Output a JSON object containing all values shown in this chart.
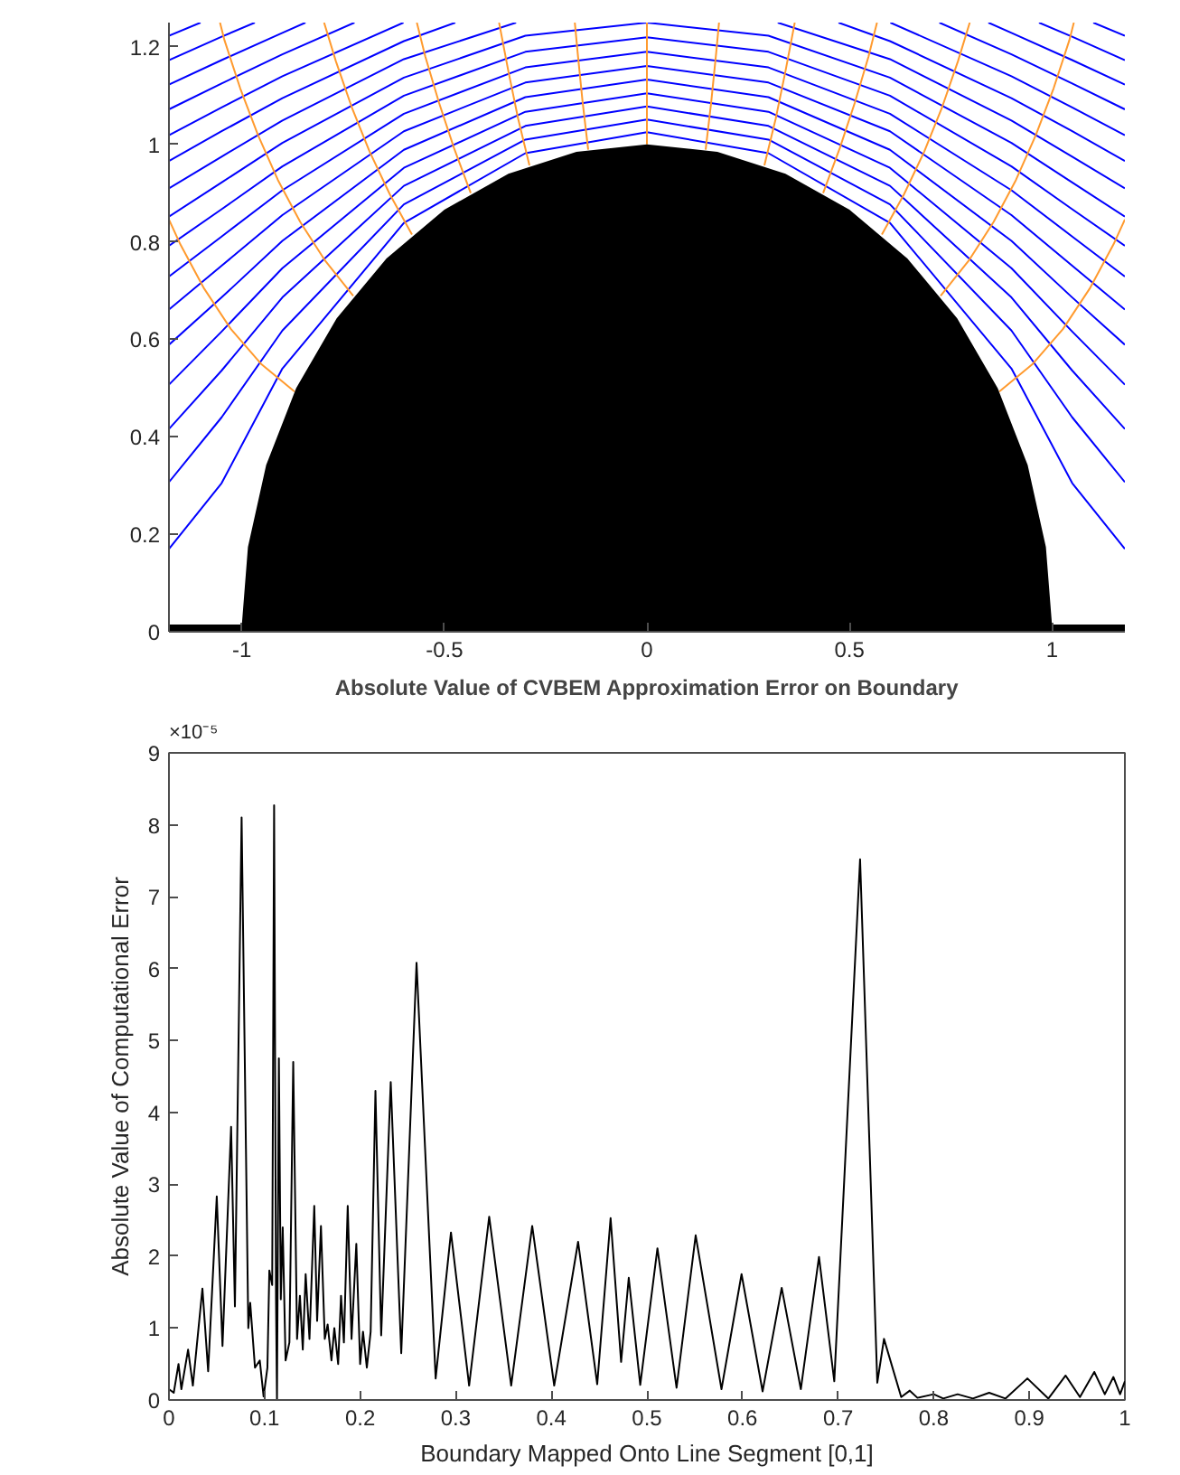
{
  "chart_data": [
    {
      "type": "line",
      "xlim": [
        -1.18,
        1.18
      ],
      "ylim": [
        0,
        1.25
      ],
      "xticks": [
        -1,
        -0.5,
        0,
        0.5,
        1
      ],
      "yticks": [
        0,
        0.2,
        0.4,
        0.6,
        0.8,
        1,
        1.2
      ],
      "series": [
        {
          "color": "#0000ff",
          "x": [
            -1.18,
            -1.05,
            -0.9,
            -0.6,
            -0.3,
            0,
            0.3,
            0.6,
            0.9,
            1.05,
            1.18
          ],
          "values": [
            0.17,
            0.305,
            0.54,
            0.839,
            0.982,
            1.025,
            0.982,
            0.839,
            0.54,
            0.305,
            0.17
          ]
        },
        {
          "color": "#0000ff",
          "x": [
            -1.18,
            -1.05,
            -0.9,
            -0.6,
            -0.3,
            0,
            0.3,
            0.6,
            0.9,
            1.05,
            1.18
          ],
          "values": [
            0.307,
            0.44,
            0.618,
            0.877,
            1.01,
            1.051,
            1.01,
            0.877,
            0.618,
            0.44,
            0.307
          ]
        },
        {
          "color": "#0000ff",
          "x": [
            -1.18,
            -1.05,
            -0.9,
            -0.6,
            -0.3,
            0,
            0.3,
            0.6,
            0.9,
            1.05,
            1.18
          ],
          "values": [
            0.416,
            0.536,
            0.686,
            0.915,
            1.038,
            1.078,
            1.038,
            0.915,
            0.686,
            0.536,
            0.416
          ]
        },
        {
          "color": "#0000ff",
          "x": [
            -1.18,
            -1.05,
            -0.9,
            -0.6,
            -0.3,
            0,
            0.3,
            0.6,
            0.9,
            1.05,
            1.18
          ],
          "values": [
            0.507,
            0.616,
            0.746,
            0.952,
            1.067,
            1.105,
            1.067,
            0.952,
            0.746,
            0.616,
            0.507
          ]
        },
        {
          "color": "#0000ff",
          "x": [
            -1.18,
            -1.05,
            -0.9,
            -0.6,
            -0.3,
            0,
            0.3,
            0.6,
            0.9,
            1.05,
            1.18
          ],
          "values": [
            0.589,
            0.686,
            0.802,
            0.989,
            1.097,
            1.133,
            1.097,
            0.989,
            0.802,
            0.686,
            0.589
          ]
        },
        {
          "color": "#0000ff",
          "x": [
            -1.18,
            -1.05,
            -0.9,
            -0.6,
            -0.3,
            0,
            0.3,
            0.6,
            0.9,
            1.05,
            1.18
          ],
          "values": [
            0.661,
            0.751,
            0.855,
            1.027,
            1.127,
            1.161,
            1.127,
            1.027,
            0.855,
            0.751,
            0.661
          ]
        },
        {
          "color": "#0000ff",
          "x": [
            -1.18,
            -1.05,
            -0.9,
            -0.6,
            -0.3,
            0,
            0.3,
            0.6,
            0.9,
            1.05,
            1.18
          ],
          "values": [
            0.729,
            0.811,
            0.906,
            1.063,
            1.158,
            1.19,
            1.158,
            1.063,
            0.906,
            0.811,
            0.729
          ]
        },
        {
          "color": "#0000ff",
          "x": [
            -1.18,
            -1.05,
            -0.9,
            -0.6,
            -0.3,
            0,
            0.3,
            0.6,
            0.9,
            1.05,
            1.18
          ],
          "values": [
            0.792,
            0.867,
            0.955,
            1.1,
            1.19,
            1.22,
            1.19,
            1.1,
            0.955,
            0.867,
            0.792
          ]
        },
        {
          "color": "#0000ff",
          "x": [
            -1.18,
            -1.05,
            -0.9,
            -0.6,
            -0.3,
            0,
            0.3,
            0.6,
            0.9,
            1.05,
            1.18
          ],
          "values": [
            0.852,
            0.922,
            1.003,
            1.137,
            1.223,
            1.25,
            1.223,
            1.137,
            1.003,
            0.922,
            0.852
          ]
        },
        {
          "color": "#0000ff",
          "x": [
            -1.18,
            -1.05,
            -0.9,
            -0.6,
            -0.323
          ],
          "values": [
            0.91,
            0.975,
            1.049,
            1.175,
            1.25
          ]
        },
        {
          "color": "#0000ff",
          "x": [
            0.323,
            0.6,
            0.9,
            1.05,
            1.18
          ],
          "values": [
            1.25,
            1.175,
            1.049,
            0.975,
            0.91
          ]
        },
        {
          "color": "#0000ff",
          "x": [
            -1.18,
            -1.05,
            -0.9,
            -0.6,
            -0.473
          ],
          "values": [
            0.966,
            1.027,
            1.095,
            1.212,
            1.25
          ]
        },
        {
          "color": "#0000ff",
          "x": [
            0.473,
            0.6,
            0.9,
            1.05,
            1.18
          ],
          "values": [
            1.25,
            1.212,
            1.095,
            1.027,
            0.966
          ]
        },
        {
          "color": "#0000ff",
          "x": [
            -1.18,
            -1.05,
            -0.9,
            -0.601
          ],
          "values": [
            1.019,
            1.076,
            1.14,
            1.25
          ]
        },
        {
          "color": "#0000ff",
          "x": [
            0.601,
            0.9,
            1.05,
            1.18
          ],
          "values": [
            1.25,
            1.14,
            1.076,
            1.019
          ]
        },
        {
          "color": "#0000ff",
          "x": [
            -1.18,
            -1.05,
            -0.9,
            -0.722
          ],
          "values": [
            1.072,
            1.125,
            1.185,
            1.25
          ]
        },
        {
          "color": "#0000ff",
          "x": [
            0.722,
            0.9,
            1.05,
            1.18
          ],
          "values": [
            1.25,
            1.185,
            1.125,
            1.072
          ]
        },
        {
          "color": "#0000ff",
          "x": [
            -1.18,
            -1.05,
            -0.9,
            -0.843
          ],
          "values": [
            1.123,
            1.173,
            1.229,
            1.25
          ]
        },
        {
          "color": "#0000ff",
          "x": [
            0.843,
            0.9,
            1.05,
            1.18
          ],
          "values": [
            1.25,
            1.229,
            1.173,
            1.123
          ]
        },
        {
          "color": "#0000ff",
          "x": [
            -1.18,
            -1.05,
            -0.968
          ],
          "values": [
            1.173,
            1.221,
            1.25
          ]
        },
        {
          "color": "#0000ff",
          "x": [
            0.968,
            1.05,
            1.18
          ],
          "values": [
            1.25,
            1.221,
            1.173
          ]
        },
        {
          "color": "#0000ff",
          "x": [
            -1.18,
            -1.102
          ],
          "values": [
            1.223,
            1.25
          ]
        },
        {
          "color": "#0000ff",
          "x": [
            1.102,
            1.18
          ],
          "values": [
            1.25,
            1.223
          ]
        },
        {
          "color": "#ff9a2e",
          "x": [
            0,
            0
          ],
          "values": [
            1,
            1.25
          ]
        },
        {
          "color": "#ff9a2e",
          "x": [
            -0.145,
            -0.159,
            -0.171,
            -0.178
          ],
          "values": [
            0.989,
            1.089,
            1.188,
            1.25
          ]
        },
        {
          "color": "#ff9a2e",
          "x": [
            0.145,
            0.159,
            0.171,
            0.178
          ],
          "values": [
            0.989,
            1.089,
            1.188,
            1.25
          ]
        },
        {
          "color": "#ff9a2e",
          "x": [
            -0.29,
            -0.318,
            -0.342,
            -0.365
          ],
          "values": [
            0.957,
            1.053,
            1.15,
            1.25
          ]
        },
        {
          "color": "#ff9a2e",
          "x": [
            0.29,
            0.318,
            0.342,
            0.365
          ],
          "values": [
            0.957,
            1.053,
            1.15,
            1.25
          ]
        },
        {
          "color": "#ff9a2e",
          "x": [
            -0.435,
            -0.476,
            -0.513,
            -0.547,
            -0.568
          ],
          "values": [
            0.9,
            0.992,
            1.085,
            1.18,
            1.25
          ]
        },
        {
          "color": "#ff9a2e",
          "x": [
            0.435,
            0.476,
            0.513,
            0.547,
            0.568
          ],
          "values": [
            0.9,
            0.992,
            1.085,
            1.18,
            1.25
          ]
        },
        {
          "color": "#ff9a2e",
          "x": [
            -0.58,
            -0.635,
            -0.685,
            -0.729,
            -0.768,
            -0.797
          ],
          "values": [
            0.815,
            0.898,
            0.986,
            1.077,
            1.171,
            1.25
          ]
        },
        {
          "color": "#ff9a2e",
          "x": [
            0.58,
            0.635,
            0.685,
            0.729,
            0.768,
            0.797
          ],
          "values": [
            0.815,
            0.898,
            0.986,
            1.077,
            1.171,
            1.25
          ]
        },
        {
          "color": "#ff9a2e",
          "x": [
            -0.725,
            -0.794,
            -0.856,
            -0.911,
            -0.96,
            -1.004,
            -1.043,
            -1.054
          ],
          "values": [
            0.689,
            0.761,
            0.841,
            0.927,
            1.019,
            1.115,
            1.214,
            1.25
          ]
        },
        {
          "color": "#ff9a2e",
          "x": [
            0.725,
            0.794,
            0.856,
            0.911,
            0.96,
            1.004,
            1.043,
            1.054
          ],
          "values": [
            0.689,
            0.761,
            0.841,
            0.927,
            1.019,
            1.115,
            1.214,
            1.25
          ]
        },
        {
          "color": "#ff9a2e",
          "x": [
            -0.87,
            -0.953,
            -1.027,
            -1.093,
            -1.152,
            -1.18
          ],
          "values": [
            0.493,
            0.55,
            0.621,
            0.704,
            0.795,
            0.846
          ]
        },
        {
          "color": "#ff9a2e",
          "x": [
            0.87,
            0.953,
            1.027,
            1.093,
            1.152,
            1.18
          ],
          "values": [
            0.493,
            0.55,
            0.621,
            0.704,
            0.795,
            0.846
          ]
        },
        {
          "type": "area",
          "color": "#000000",
          "x": [
            -1.18,
            -1,
            -0.985,
            -0.94,
            -0.866,
            -0.766,
            -0.643,
            -0.5,
            -0.342,
            -0.174,
            0,
            0.174,
            0.342,
            0.5,
            0.643,
            0.766,
            0.866,
            0.94,
            0.985,
            1,
            1.18
          ],
          "values": [
            0.015,
            0.015,
            0.174,
            0.342,
            0.5,
            0.643,
            0.766,
            0.866,
            0.94,
            0.985,
            1,
            0.985,
            0.94,
            0.866,
            0.766,
            0.643,
            0.5,
            0.342,
            0.174,
            0.015,
            0.015
          ]
        }
      ]
    },
    {
      "type": "line",
      "title": "Absolute Value of CVBEM Approximation Error on Boundary",
      "xlabel": "Boundary Mapped Onto Line Segment [0,1]",
      "ylabel": "Absolute Value of Computational Error",
      "annotations": [
        "×10⁻⁵"
      ],
      "xlim": [
        0,
        1
      ],
      "ylim": [
        0,
        9
      ],
      "xticks": [
        0,
        0.1,
        0.2,
        0.3,
        0.4,
        0.5,
        0.6,
        0.7,
        0.8,
        0.9,
        1
      ],
      "yticks": [
        0,
        1,
        2,
        3,
        4,
        5,
        6,
        7,
        8,
        9
      ],
      "series": [
        {
          "color": "#000000",
          "x": [
            0,
            0.005,
            0.01,
            0.013,
            0.02,
            0.025,
            0.035,
            0.041,
            0.05,
            0.056,
            0.065,
            0.069,
            0.076,
            0.083,
            0.085,
            0.09,
            0.095,
            0.099,
            0.103,
            0.105,
            0.108,
            0.11,
            0.112,
            0.113,
            0.115,
            0.117,
            0.119,
            0.122,
            0.126,
            0.13,
            0.134,
            0.137,
            0.14,
            0.143,
            0.147,
            0.152,
            0.155,
            0.159,
            0.163,
            0.166,
            0.17,
            0.173,
            0.177,
            0.18,
            0.183,
            0.187,
            0.191,
            0.196,
            0.2,
            0.203,
            0.207,
            0.211,
            0.216,
            0.222,
            0.232,
            0.243,
            0.259,
            0.279,
            0.295,
            0.314,
            0.335,
            0.358,
            0.38,
            0.403,
            0.428,
            0.448,
            0.462,
            0.473,
            0.481,
            0.493,
            0.511,
            0.531,
            0.551,
            0.578,
            0.599,
            0.621,
            0.641,
            0.661,
            0.68,
            0.696,
            0.723,
            0.741,
            0.748,
            0.766,
            0.775,
            0.783,
            0.8,
            0.81,
            0.825,
            0.841,
            0.858,
            0.875,
            0.898,
            0.92,
            0.938,
            0.953,
            0.968,
            0.979,
            0.988,
            0.995,
            1
          ],
          "values": [
            0.15,
            0.1,
            0.5,
            0.15,
            0.7,
            0.2,
            1.55,
            0.4,
            2.83,
            0.75,
            3.8,
            1.3,
            8.1,
            1,
            1.35,
            0.45,
            0.55,
            0.05,
            0.45,
            1.8,
            1.6,
            8.27,
            1.4,
            0,
            4.75,
            1.4,
            2.4,
            0.55,
            0.8,
            4.7,
            0.85,
            1.45,
            0.7,
            1.75,
            0.85,
            2.7,
            1.1,
            2.42,
            0.85,
            1.05,
            0.55,
            1,
            0.5,
            1.45,
            0.8,
            2.7,
            0.85,
            2.17,
            0.5,
            0.95,
            0.45,
            0.95,
            4.3,
            0.9,
            4.42,
            0.65,
            6.08,
            0.3,
            2.33,
            0.2,
            2.55,
            0.2,
            2.42,
            0.2,
            2.2,
            0.22,
            2.53,
            0.53,
            1.7,
            0.21,
            2.11,
            0.17,
            2.29,
            0.15,
            1.75,
            0.12,
            1.56,
            0.15,
            1.99,
            0.26,
            7.52,
            0.24,
            0.85,
            0.04,
            0.13,
            0.03,
            0.08,
            0.02,
            0.08,
            0.02,
            0.1,
            0.02,
            0.3,
            0.02,
            0.34,
            0.04,
            0.39,
            0.08,
            0.32,
            0.08,
            0.26
          ]
        }
      ]
    }
  ]
}
